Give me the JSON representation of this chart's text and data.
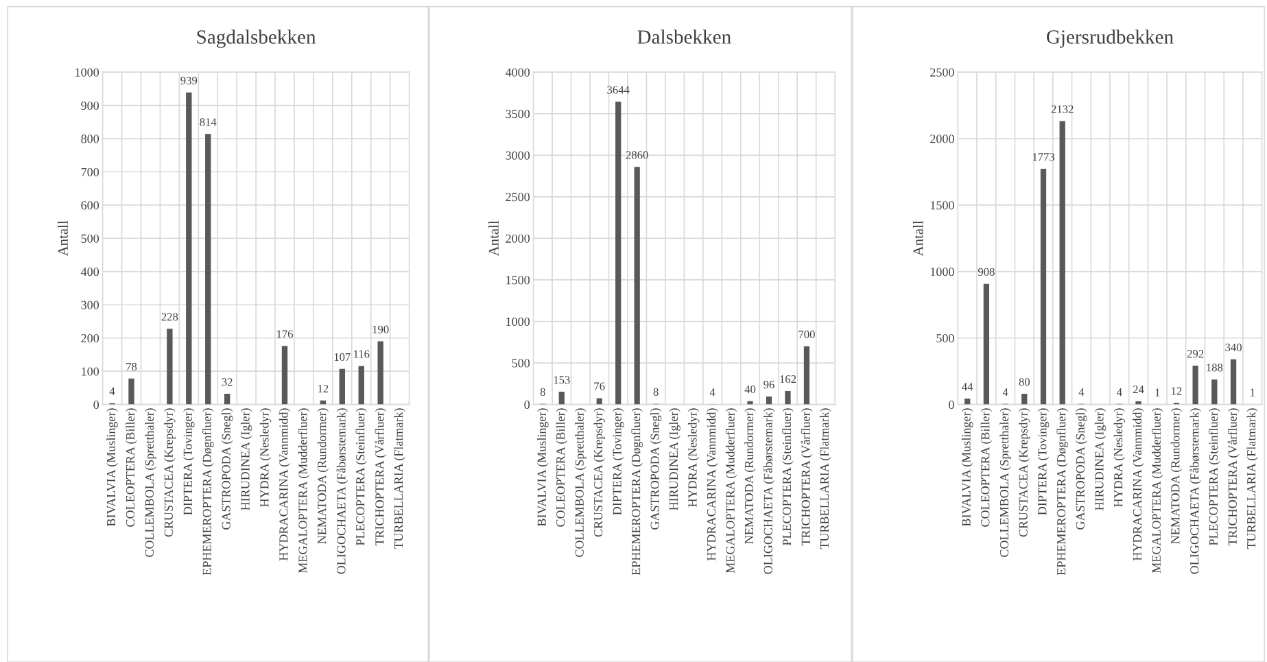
{
  "chart_data": [
    {
      "type": "bar",
      "title": "Sagdalsbekken",
      "ylabel": "Antall",
      "categories": [
        "BIVALVIA (Muslinger)",
        "COLEOPTERA (Biller)",
        "COLLEMBOLA (Spretthaler)",
        "CRUSTACEA (Krepsdyr)",
        "DIPTERA (Tovinger)",
        "EPHEMEROPTERA (Døgnfluer)",
        "GASTROPODA (Snegl)",
        "HIRUDINEA (Igler)",
        "HYDRA (Nesledyr)",
        "HYDRACARINA (Vannmidd)",
        "MEGALOPTERA (Mudderfluer)",
        "NEMATODA (Rundormer)",
        "OLIGOCHAETA (Fåbørstemark)",
        "PLECOPTERA (Steinfluer)",
        "TRICHOPTERA (Vårfluer)",
        "TURBELLARIA (Flatmark)"
      ],
      "values": [
        4,
        78,
        null,
        228,
        939,
        814,
        32,
        null,
        null,
        176,
        null,
        12,
        107,
        116,
        190,
        null
      ],
      "color": "#595959",
      "ylim": [
        0,
        1000
      ],
      "yticks": [
        0,
        100,
        200,
        300,
        400,
        500,
        600,
        700,
        800,
        900,
        1000
      ],
      "grid": true,
      "data_labels": true
    },
    {
      "type": "bar",
      "title": "Dalsbekken",
      "ylabel": "Antall",
      "categories": [
        "BIVALVIA (Muslinger)",
        "COLEOPTERA (Biller)",
        "COLLEMBOLA (Spretthaler)",
        "CRUSTACEA (Krepsdyr)",
        "DIPTERA (Tovinger)",
        "EPHEMEROPTERA (Døgnfluer)",
        "GASTROPODA (Snegl)",
        "HIRUDINEA (Igler)",
        "HYDRA (Nesledyr)",
        "HYDRACARINA (Vannmidd)",
        "MEGALOPTERA (Mudderfluer)",
        "NEMATODA (Rundormer)",
        "OLIGOCHAETA (Fåbørstemark)",
        "PLECOPTERA (Steinfluer)",
        "TRICHOPTERA (Vårfluer)",
        "TURBELLARIA (Flatmark)"
      ],
      "values": [
        8,
        153,
        null,
        76,
        3644,
        2860,
        8,
        null,
        null,
        4,
        null,
        40,
        96,
        162,
        700,
        null
      ],
      "color": "#595959",
      "ylim": [
        0,
        4000
      ],
      "yticks": [
        0,
        500,
        1000,
        1500,
        2000,
        2500,
        3000,
        3500,
        4000
      ],
      "grid": true,
      "data_labels": true
    },
    {
      "type": "bar",
      "title": "Gjersrudbekken",
      "ylabel": "Antall",
      "categories": [
        "BIVALVIA (Muslinger)",
        "COLEOPTERA (Biller)",
        "COLLEMBOLA (Spretthaler)",
        "CRUSTACEA (Krepsdyr)",
        "DIPTERA (Tovinger)",
        "EPHEMEROPTERA (Døgnfluer)",
        "GASTROPODA (Snegl)",
        "HIRUDINEA (Igler)",
        "HYDRA (Nesledyr)",
        "HYDRACARINA (Vannmidd)",
        "MEGALOPTERA (Mudderfluer)",
        "NEMATODA (Rundormer)",
        "OLIGOCHAETA (Fåbørstemark)",
        "PLECOPTERA (Steinfluer)",
        "TRICHOPTERA (Vårfluer)",
        "TURBELLARIA (Flatmark)"
      ],
      "values": [
        44,
        908,
        4,
        80,
        1773,
        2132,
        4,
        null,
        4,
        24,
        1,
        12,
        292,
        188,
        340,
        1
      ],
      "color": "#595959",
      "ylim": [
        0,
        2500
      ],
      "yticks": [
        0,
        500,
        1000,
        1500,
        2000,
        2500
      ],
      "grid": true,
      "data_labels": true
    }
  ]
}
